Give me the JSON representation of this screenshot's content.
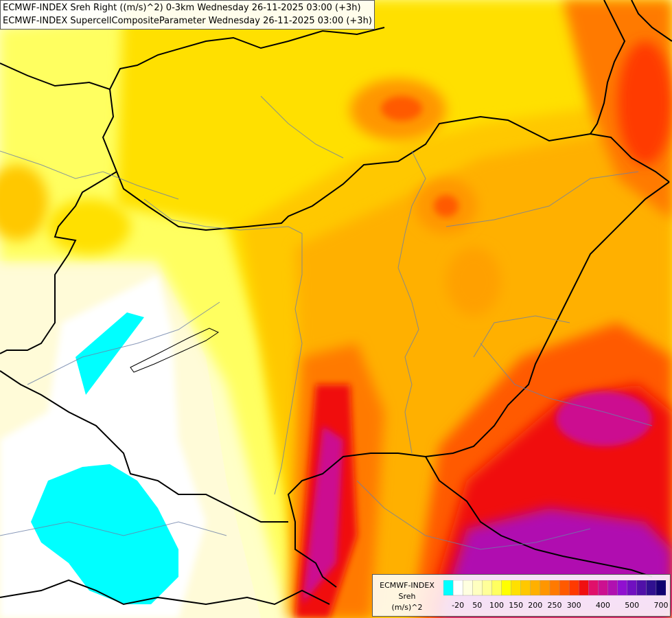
{
  "title": {
    "line1": "ECMWF-INDEX Sreh Right ((m/s)^2) 0-3km Wednesday 26-11-2025 03:00 (+3h)",
    "line2": "ECMWF-INDEX SupercellCompositeParameter Wednesday 26-11-2025 03:00 (+3h)"
  },
  "legend": {
    "model": "ECMWF-INDEX",
    "parameter": "Sreh",
    "unit": "(m/s)^2",
    "colors": [
      "#00ffff",
      "#ffffff",
      "#ffffe0",
      "#ffffc0",
      "#ffff99",
      "#ffff60",
      "#ffff00",
      "#ffe000",
      "#ffc800",
      "#ffb000",
      "#ff9600",
      "#ff7a00",
      "#ff5a00",
      "#ff3a00",
      "#f01010",
      "#e0106a",
      "#cc1090",
      "#b010b0",
      "#9010d0",
      "#7010c0",
      "#5010a8",
      "#301090",
      "#100070"
    ],
    "tick_labels": [
      "-20",
      "50",
      "100",
      "150",
      "200",
      "250",
      "300",
      "400",
      "500",
      "700"
    ]
  }
}
